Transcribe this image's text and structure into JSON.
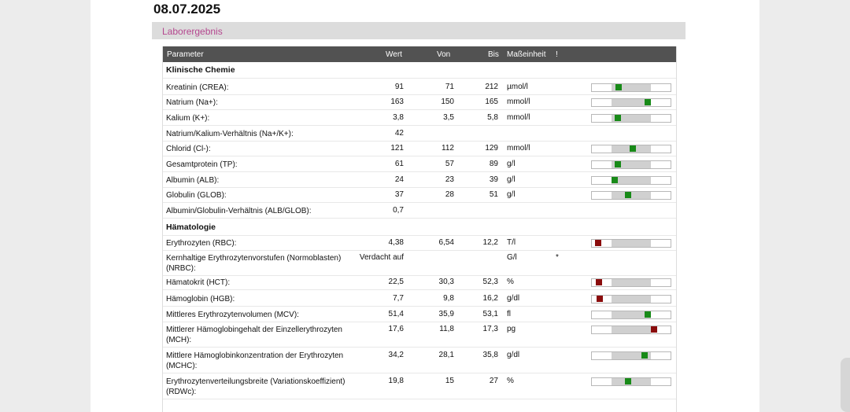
{
  "date": "08.07.2025",
  "lab_title": "Laborergebnis",
  "columns": {
    "parameter": "Parameter",
    "wert": "Wert",
    "von": "Von",
    "bis": "Bis",
    "einheit": "Maßeinheit",
    "flag": "!"
  },
  "sections": [
    {
      "title": "Klinische Chemie",
      "rows": [
        {
          "parameter": "Kreatinin (CREA):",
          "wert": "91",
          "von": "71",
          "bis": "212",
          "einheit": "µmol/l",
          "flag": "",
          "status": "ok",
          "position": 0.34
        },
        {
          "parameter": "Natrium (Na+):",
          "wert": "163",
          "von": "150",
          "bis": "165",
          "einheit": "mmol/l",
          "flag": "",
          "status": "ok",
          "position": 0.71
        },
        {
          "parameter": "Kalium (K+):",
          "wert": "3,8",
          "von": "3,5",
          "bis": "5,8",
          "einheit": "mmol/l",
          "flag": "",
          "status": "ok",
          "position": 0.33
        },
        {
          "parameter": "Natrium/Kalium-Verhältnis (Na+/K+):",
          "wert": "42",
          "von": "",
          "bis": "",
          "einheit": "",
          "flag": "",
          "status": "none",
          "position": null
        },
        {
          "parameter": "Chlorid (Cl-):",
          "wert": "121",
          "von": "112",
          "bis": "129",
          "einheit": "mmol/l",
          "flag": "",
          "status": "ok",
          "position": 0.52
        },
        {
          "parameter": "Gesamtprotein (TP):",
          "wert": "61",
          "von": "57",
          "bis": "89",
          "einheit": "g/l",
          "flag": "",
          "status": "ok",
          "position": 0.33
        },
        {
          "parameter": "Albumin (ALB):",
          "wert": "24",
          "von": "23",
          "bis": "39",
          "einheit": "g/l",
          "flag": "",
          "status": "ok",
          "position": 0.29
        },
        {
          "parameter": "Globulin (GLOB):",
          "wert": "37",
          "von": "28",
          "bis": "51",
          "einheit": "g/l",
          "flag": "",
          "status": "ok",
          "position": 0.46
        },
        {
          "parameter": "Albumin/Globulin-Verhältnis (ALB/GLOB):",
          "wert": "0,7",
          "von": "",
          "bis": "",
          "einheit": "",
          "flag": "",
          "status": "none",
          "position": null
        }
      ]
    },
    {
      "title": "Hämatologie",
      "rows": [
        {
          "parameter": "Erythrozyten (RBC):",
          "wert": "4,38",
          "von": "6,54",
          "bis": "12,2",
          "einheit": "T/l",
          "flag": "",
          "status": "bad",
          "position": 0.08
        },
        {
          "parameter": "Kernhaltige Erythrozytenvorstufen (Normoblasten) (NRBC):",
          "wert": "Verdacht auf",
          "von": "",
          "bis": "",
          "einheit": "G/l",
          "flag": "*",
          "status": "none",
          "position": null
        },
        {
          "parameter": "Hämatokrit (HCT):",
          "wert": "22,5",
          "von": "30,3",
          "bis": "52,3",
          "einheit": "%",
          "flag": "",
          "status": "bad",
          "position": 0.09
        },
        {
          "parameter": "Hämoglobin (HGB):",
          "wert": "7,7",
          "von": "9,8",
          "bis": "16,2",
          "einheit": "g/dl",
          "flag": "",
          "status": "bad",
          "position": 0.1
        },
        {
          "parameter": "Mittleres Erythrozytenvolumen (MCV):",
          "wert": "51,4",
          "von": "35,9",
          "bis": "53,1",
          "einheit": "fl",
          "flag": "",
          "status": "ok",
          "position": 0.71
        },
        {
          "parameter": "Mittlerer Hämoglobingehalt der Einzellerythrozyten (MCH):",
          "wert": "17,6",
          "von": "11,8",
          "bis": "17,3",
          "einheit": "pg",
          "flag": "",
          "status": "bad",
          "position": 0.79
        },
        {
          "parameter": "Mittlere Hämoglobinkonzentration der Erythrozyten (MCHC):",
          "wert": "34,2",
          "von": "28,1",
          "bis": "35,8",
          "einheit": "g/dl",
          "flag": "",
          "status": "ok",
          "position": 0.67
        },
        {
          "parameter": "Erythrozytenverteilungsbreite (Variationskoeffizient) (RDWc):",
          "wert": "19,8",
          "von": "15",
          "bis": "27",
          "einheit": "%",
          "flag": "",
          "status": "ok",
          "position": 0.46
        }
      ]
    }
  ]
}
